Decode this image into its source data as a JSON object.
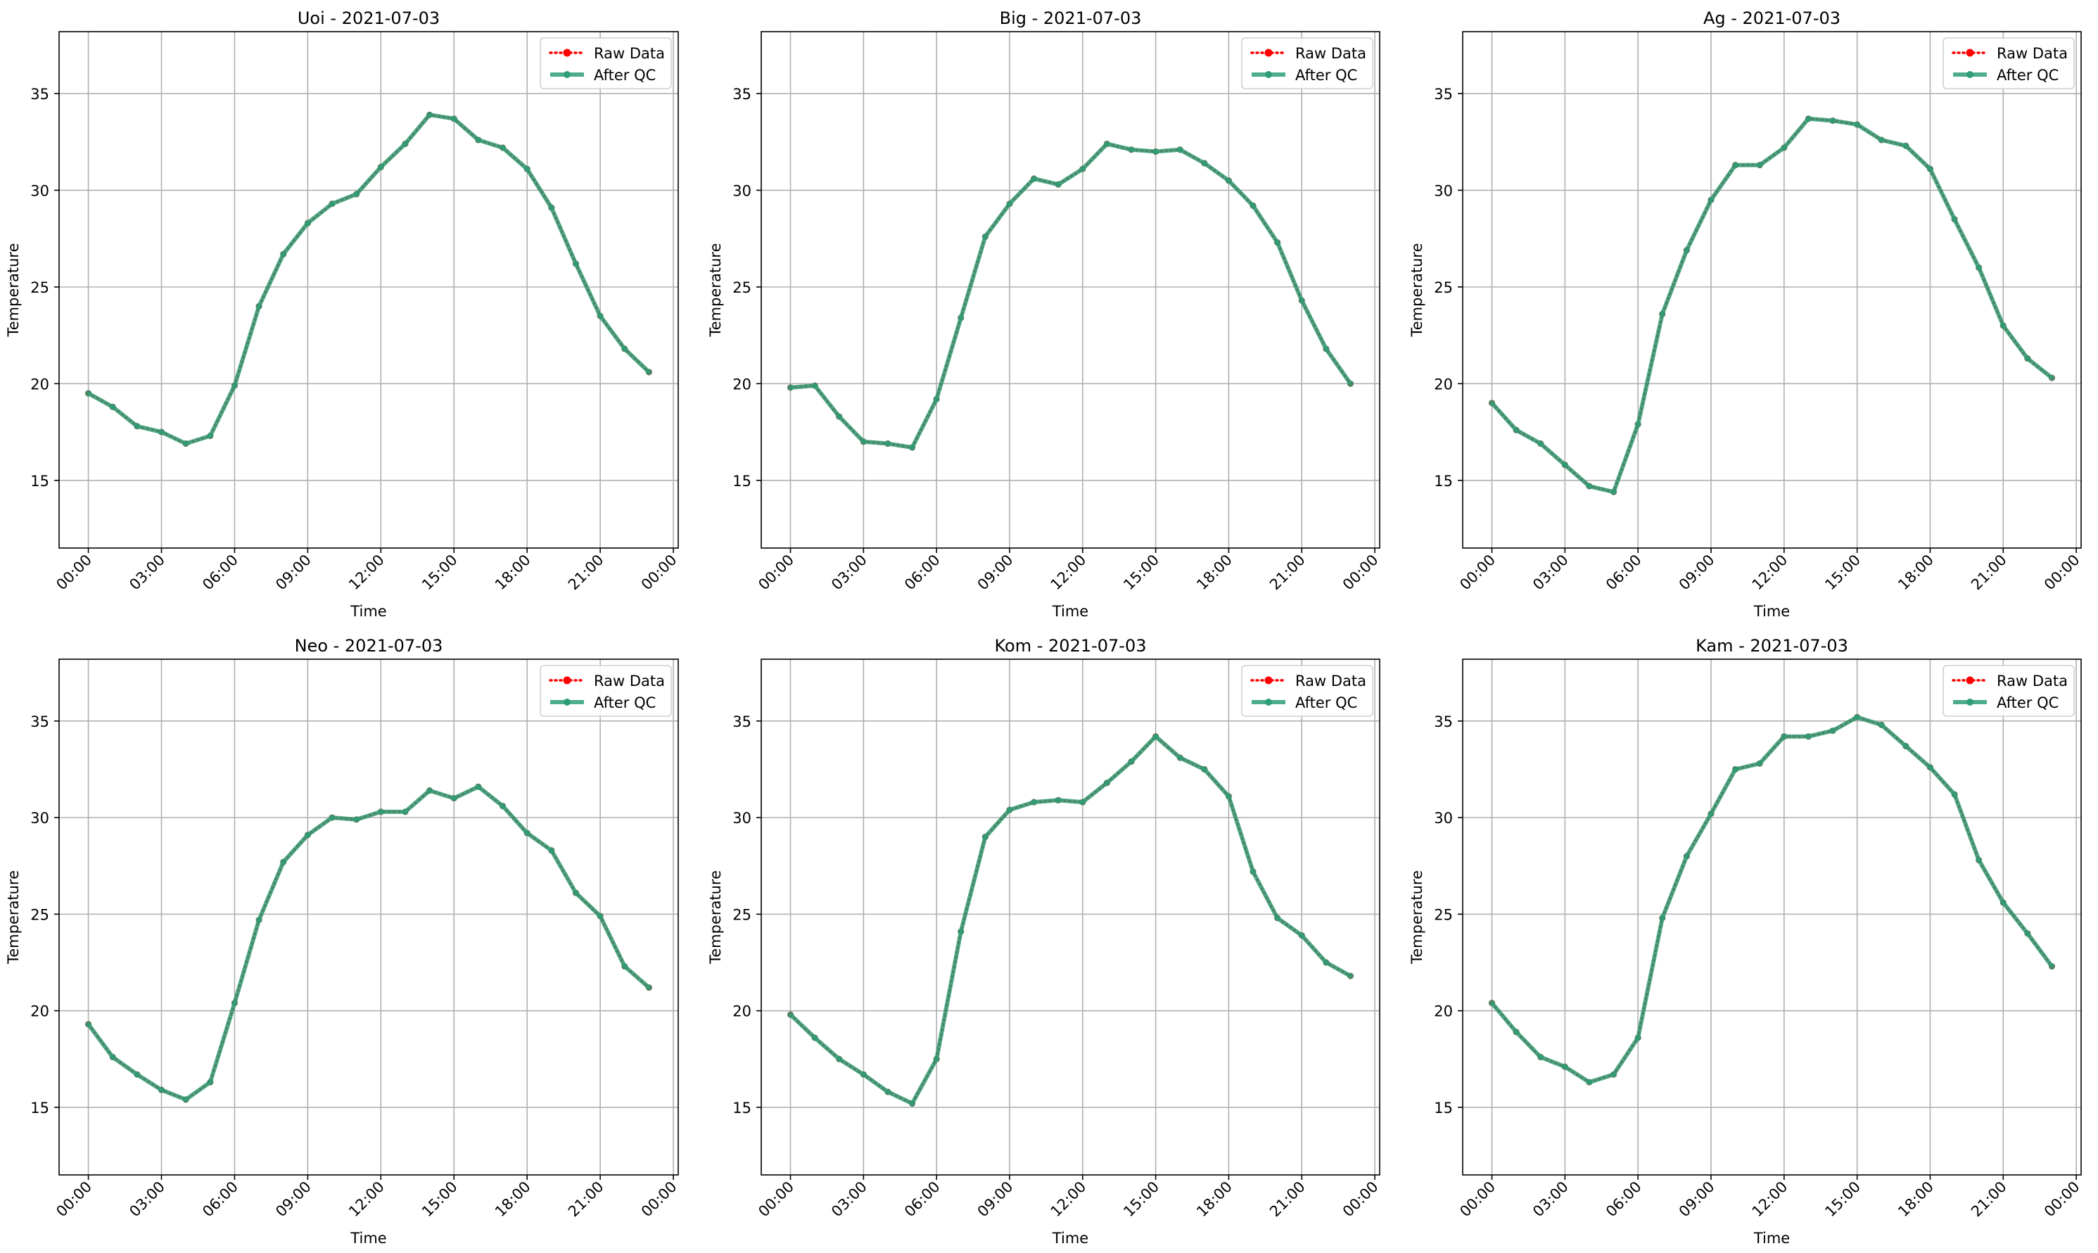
{
  "figure": {
    "background": "#ffffff",
    "raw_color": "#ff0000",
    "qc_color": "#2e9e77"
  },
  "chart_data": [
    {
      "type": "line",
      "title": "Uoi - 2021-07-03",
      "xlabel": "Time",
      "ylabel": "Temperature",
      "x": [
        "00:00",
        "01:00",
        "02:00",
        "03:00",
        "04:00",
        "05:00",
        "06:00",
        "07:00",
        "08:00",
        "09:00",
        "10:00",
        "11:00",
        "12:00",
        "13:00",
        "14:00",
        "15:00",
        "16:00",
        "17:00",
        "18:00",
        "19:00",
        "20:00",
        "21:00",
        "22:00",
        "23:00"
      ],
      "xticks": [
        "00:00",
        "03:00",
        "06:00",
        "09:00",
        "12:00",
        "15:00",
        "18:00",
        "21:00",
        "00:00"
      ],
      "yticks": [
        15,
        20,
        25,
        30,
        35
      ],
      "xlim": [
        -1.2,
        24.2
      ],
      "ylim": [
        11.5,
        38.2
      ],
      "grid": true,
      "legend_position": "upper right",
      "series": [
        {
          "name": "Raw Data",
          "style": "dotted",
          "values": [
            19.5,
            18.8,
            17.8,
            17.5,
            16.9,
            17.3,
            19.9,
            24.0,
            26.7,
            28.3,
            29.3,
            29.8,
            31.2,
            32.4,
            33.9,
            33.7,
            32.6,
            32.2,
            31.1,
            29.1,
            26.2,
            23.5,
            21.8,
            20.6
          ]
        },
        {
          "name": "After QC",
          "style": "solid",
          "values": [
            19.5,
            18.8,
            17.8,
            17.5,
            16.9,
            17.3,
            19.9,
            24.0,
            26.7,
            28.3,
            29.3,
            29.8,
            31.2,
            32.4,
            33.9,
            33.7,
            32.6,
            32.2,
            31.1,
            29.1,
            26.2,
            23.5,
            21.8,
            20.6
          ]
        }
      ]
    },
    {
      "type": "line",
      "title": "Big - 2021-07-03",
      "xlabel": "Time",
      "ylabel": "Temperature",
      "x": [
        "00:00",
        "01:00",
        "02:00",
        "03:00",
        "04:00",
        "05:00",
        "06:00",
        "07:00",
        "08:00",
        "09:00",
        "10:00",
        "11:00",
        "12:00",
        "13:00",
        "14:00",
        "15:00",
        "16:00",
        "17:00",
        "18:00",
        "19:00",
        "20:00",
        "21:00",
        "22:00",
        "23:00"
      ],
      "xticks": [
        "00:00",
        "03:00",
        "06:00",
        "09:00",
        "12:00",
        "15:00",
        "18:00",
        "21:00",
        "00:00"
      ],
      "yticks": [
        15,
        20,
        25,
        30,
        35
      ],
      "xlim": [
        -1.2,
        24.2
      ],
      "ylim": [
        11.5,
        38.2
      ],
      "grid": true,
      "legend_position": "upper right",
      "series": [
        {
          "name": "Raw Data",
          "style": "dotted",
          "values": [
            19.8,
            19.9,
            18.3,
            17.0,
            16.9,
            16.7,
            19.2,
            23.4,
            27.6,
            29.3,
            30.6,
            30.3,
            31.1,
            32.4,
            32.1,
            32.0,
            32.1,
            31.4,
            30.5,
            29.2,
            27.3,
            24.3,
            21.8,
            20.0
          ]
        },
        {
          "name": "After QC",
          "style": "solid",
          "values": [
            19.8,
            19.9,
            18.3,
            17.0,
            16.9,
            16.7,
            19.2,
            23.4,
            27.6,
            29.3,
            30.6,
            30.3,
            31.1,
            32.4,
            32.1,
            32.0,
            32.1,
            31.4,
            30.5,
            29.2,
            27.3,
            24.3,
            21.8,
            20.0
          ]
        }
      ]
    },
    {
      "type": "line",
      "title": "Ag - 2021-07-03",
      "xlabel": "Time",
      "ylabel": "Temperature",
      "x": [
        "00:00",
        "01:00",
        "02:00",
        "03:00",
        "04:00",
        "05:00",
        "06:00",
        "07:00",
        "08:00",
        "09:00",
        "10:00",
        "11:00",
        "12:00",
        "13:00",
        "14:00",
        "15:00",
        "16:00",
        "17:00",
        "18:00",
        "19:00",
        "20:00",
        "21:00",
        "22:00",
        "23:00"
      ],
      "xticks": [
        "00:00",
        "03:00",
        "06:00",
        "09:00",
        "12:00",
        "15:00",
        "18:00",
        "21:00",
        "00:00"
      ],
      "yticks": [
        15,
        20,
        25,
        30,
        35
      ],
      "xlim": [
        -1.2,
        24.2
      ],
      "ylim": [
        11.5,
        38.2
      ],
      "grid": true,
      "legend_position": "upper right",
      "series": [
        {
          "name": "Raw Data",
          "style": "dotted",
          "values": [
            19.0,
            17.6,
            16.9,
            15.8,
            14.7,
            14.4,
            17.9,
            23.6,
            26.9,
            29.5,
            31.3,
            31.3,
            32.2,
            33.7,
            33.6,
            33.4,
            32.6,
            32.3,
            31.1,
            28.5,
            26.0,
            23.0,
            21.3,
            20.3
          ]
        },
        {
          "name": "After QC",
          "style": "solid",
          "values": [
            19.0,
            17.6,
            16.9,
            15.8,
            14.7,
            14.4,
            17.9,
            23.6,
            26.9,
            29.5,
            31.3,
            31.3,
            32.2,
            33.7,
            33.6,
            33.4,
            32.6,
            32.3,
            31.1,
            28.5,
            26.0,
            23.0,
            21.3,
            20.3
          ]
        }
      ]
    },
    {
      "type": "line",
      "title": "Neo - 2021-07-03",
      "xlabel": "Time",
      "ylabel": "Temperature",
      "x": [
        "00:00",
        "01:00",
        "02:00",
        "03:00",
        "04:00",
        "05:00",
        "06:00",
        "07:00",
        "08:00",
        "09:00",
        "10:00",
        "11:00",
        "12:00",
        "13:00",
        "14:00",
        "15:00",
        "16:00",
        "17:00",
        "18:00",
        "19:00",
        "20:00",
        "21:00",
        "22:00",
        "23:00"
      ],
      "xticks": [
        "00:00",
        "03:00",
        "06:00",
        "09:00",
        "12:00",
        "15:00",
        "18:00",
        "21:00",
        "00:00"
      ],
      "yticks": [
        15,
        20,
        25,
        30,
        35
      ],
      "xlim": [
        -1.2,
        24.2
      ],
      "ylim": [
        11.5,
        38.2
      ],
      "grid": true,
      "legend_position": "upper right",
      "series": [
        {
          "name": "Raw Data",
          "style": "dotted",
          "values": [
            19.3,
            17.6,
            16.7,
            15.9,
            15.4,
            16.3,
            20.4,
            24.7,
            27.7,
            29.1,
            30.0,
            29.9,
            30.3,
            30.3,
            31.4,
            31.0,
            31.6,
            30.6,
            29.2,
            28.3,
            26.1,
            24.9,
            22.3,
            21.2
          ]
        },
        {
          "name": "After QC",
          "style": "solid",
          "values": [
            19.3,
            17.6,
            16.7,
            15.9,
            15.4,
            16.3,
            20.4,
            24.7,
            27.7,
            29.1,
            30.0,
            29.9,
            30.3,
            30.3,
            31.4,
            31.0,
            31.6,
            30.6,
            29.2,
            28.3,
            26.1,
            24.9,
            22.3,
            21.2
          ]
        }
      ]
    },
    {
      "type": "line",
      "title": "Kom - 2021-07-03",
      "xlabel": "Time",
      "ylabel": "Temperature",
      "x": [
        "00:00",
        "01:00",
        "02:00",
        "03:00",
        "04:00",
        "05:00",
        "06:00",
        "07:00",
        "08:00",
        "09:00",
        "10:00",
        "11:00",
        "12:00",
        "13:00",
        "14:00",
        "15:00",
        "16:00",
        "17:00",
        "18:00",
        "19:00",
        "20:00",
        "21:00",
        "22:00",
        "23:00"
      ],
      "xticks": [
        "00:00",
        "03:00",
        "06:00",
        "09:00",
        "12:00",
        "15:00",
        "18:00",
        "21:00",
        "00:00"
      ],
      "yticks": [
        15,
        20,
        25,
        30,
        35
      ],
      "xlim": [
        -1.2,
        24.2
      ],
      "ylim": [
        11.5,
        38.2
      ],
      "grid": true,
      "legend_position": "upper right",
      "series": [
        {
          "name": "Raw Data",
          "style": "dotted",
          "values": [
            19.8,
            18.6,
            17.5,
            16.7,
            15.8,
            15.2,
            17.5,
            24.1,
            29.0,
            30.4,
            30.8,
            30.9,
            30.8,
            31.8,
            32.9,
            34.2,
            33.1,
            32.5,
            31.1,
            27.2,
            24.8,
            23.9,
            22.5,
            21.8
          ]
        },
        {
          "name": "After QC",
          "style": "solid",
          "values": [
            19.8,
            18.6,
            17.5,
            16.7,
            15.8,
            15.2,
            17.5,
            24.1,
            29.0,
            30.4,
            30.8,
            30.9,
            30.8,
            31.8,
            32.9,
            34.2,
            33.1,
            32.5,
            31.1,
            27.2,
            24.8,
            23.9,
            22.5,
            21.8
          ]
        }
      ]
    },
    {
      "type": "line",
      "title": "Kam - 2021-07-03",
      "xlabel": "Time",
      "ylabel": "Temperature",
      "x": [
        "00:00",
        "01:00",
        "02:00",
        "03:00",
        "04:00",
        "05:00",
        "06:00",
        "07:00",
        "08:00",
        "09:00",
        "10:00",
        "11:00",
        "12:00",
        "13:00",
        "14:00",
        "15:00",
        "16:00",
        "17:00",
        "18:00",
        "19:00",
        "20:00",
        "21:00",
        "22:00",
        "23:00"
      ],
      "xticks": [
        "00:00",
        "03:00",
        "06:00",
        "09:00",
        "12:00",
        "15:00",
        "18:00",
        "21:00",
        "00:00"
      ],
      "yticks": [
        15,
        20,
        25,
        30,
        35
      ],
      "xlim": [
        -1.2,
        24.2
      ],
      "ylim": [
        11.5,
        38.2
      ],
      "grid": true,
      "legend_position": "upper right",
      "series": [
        {
          "name": "Raw Data",
          "style": "dotted",
          "values": [
            20.4,
            18.9,
            17.6,
            17.1,
            16.3,
            16.7,
            18.6,
            24.8,
            28.0,
            30.2,
            32.5,
            32.8,
            34.2,
            34.2,
            34.5,
            35.2,
            34.8,
            33.7,
            32.6,
            31.2,
            27.8,
            25.6,
            24.0,
            22.3
          ]
        },
        {
          "name": "After QC",
          "style": "solid",
          "values": [
            20.4,
            18.9,
            17.6,
            17.1,
            16.3,
            16.7,
            18.6,
            24.8,
            28.0,
            30.2,
            32.5,
            32.8,
            34.2,
            34.2,
            34.5,
            35.2,
            34.8,
            33.7,
            32.6,
            31.2,
            27.8,
            25.6,
            24.0,
            22.3
          ]
        }
      ]
    }
  ]
}
